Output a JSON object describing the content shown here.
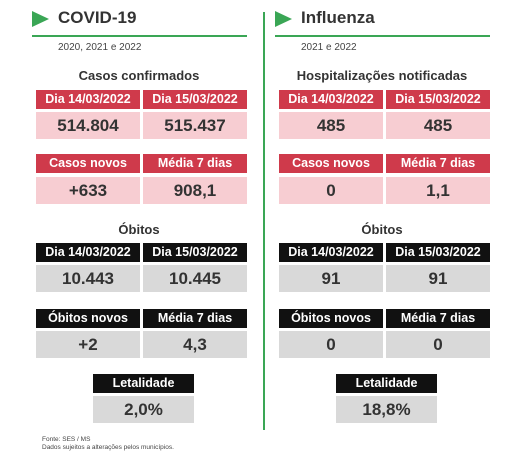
{
  "covid": {
    "title": "COVID-19",
    "years": "2020, 2021 e 2022",
    "cases_title": "Casos confirmados",
    "date1": "Dia 14/03/2022",
    "date2": "Dia 15/03/2022",
    "cases_date1": "514.804",
    "cases_date2": "515.437",
    "new_cases_label": "Casos novos",
    "avg_label": "Média 7 dias",
    "new_cases": "+633",
    "cases_avg": "908,1",
    "deaths_title": "Óbitos",
    "deaths_date1": "10.443",
    "deaths_date2": "10.445",
    "new_deaths_label": "Óbitos novos",
    "new_deaths": "+2",
    "deaths_avg": "4,3",
    "lethality_label": "Letalidade",
    "lethality": "2,0%"
  },
  "flu": {
    "title": "Influenza",
    "years": "2021 e 2022",
    "cases_title": "Hospitalizações notificadas",
    "date1": "Dia 14/03/2022",
    "date2": "Dia 15/03/2022",
    "cases_date1": "485",
    "cases_date2": "485",
    "new_cases_label": "Casos novos",
    "avg_label": "Média 7 dias",
    "new_cases": "0",
    "cases_avg": "1,1",
    "deaths_title": "Óbitos",
    "deaths_date1": "91",
    "deaths_date2": "91",
    "new_deaths_label": "Óbitos novos",
    "new_deaths": "0",
    "deaths_avg": "0",
    "lethality_label": "Letalidade",
    "lethality": "18,8%"
  },
  "footer": {
    "source": "Fonte: SES / MS",
    "note": "Dados sujeitos a alterações pelos municípios."
  },
  "colors": {
    "accent_green": "#3aa655",
    "header_red": "#cf3a4b",
    "value_pink": "#f7cdd2",
    "header_black": "#111111",
    "value_gray": "#d9d9d9"
  }
}
